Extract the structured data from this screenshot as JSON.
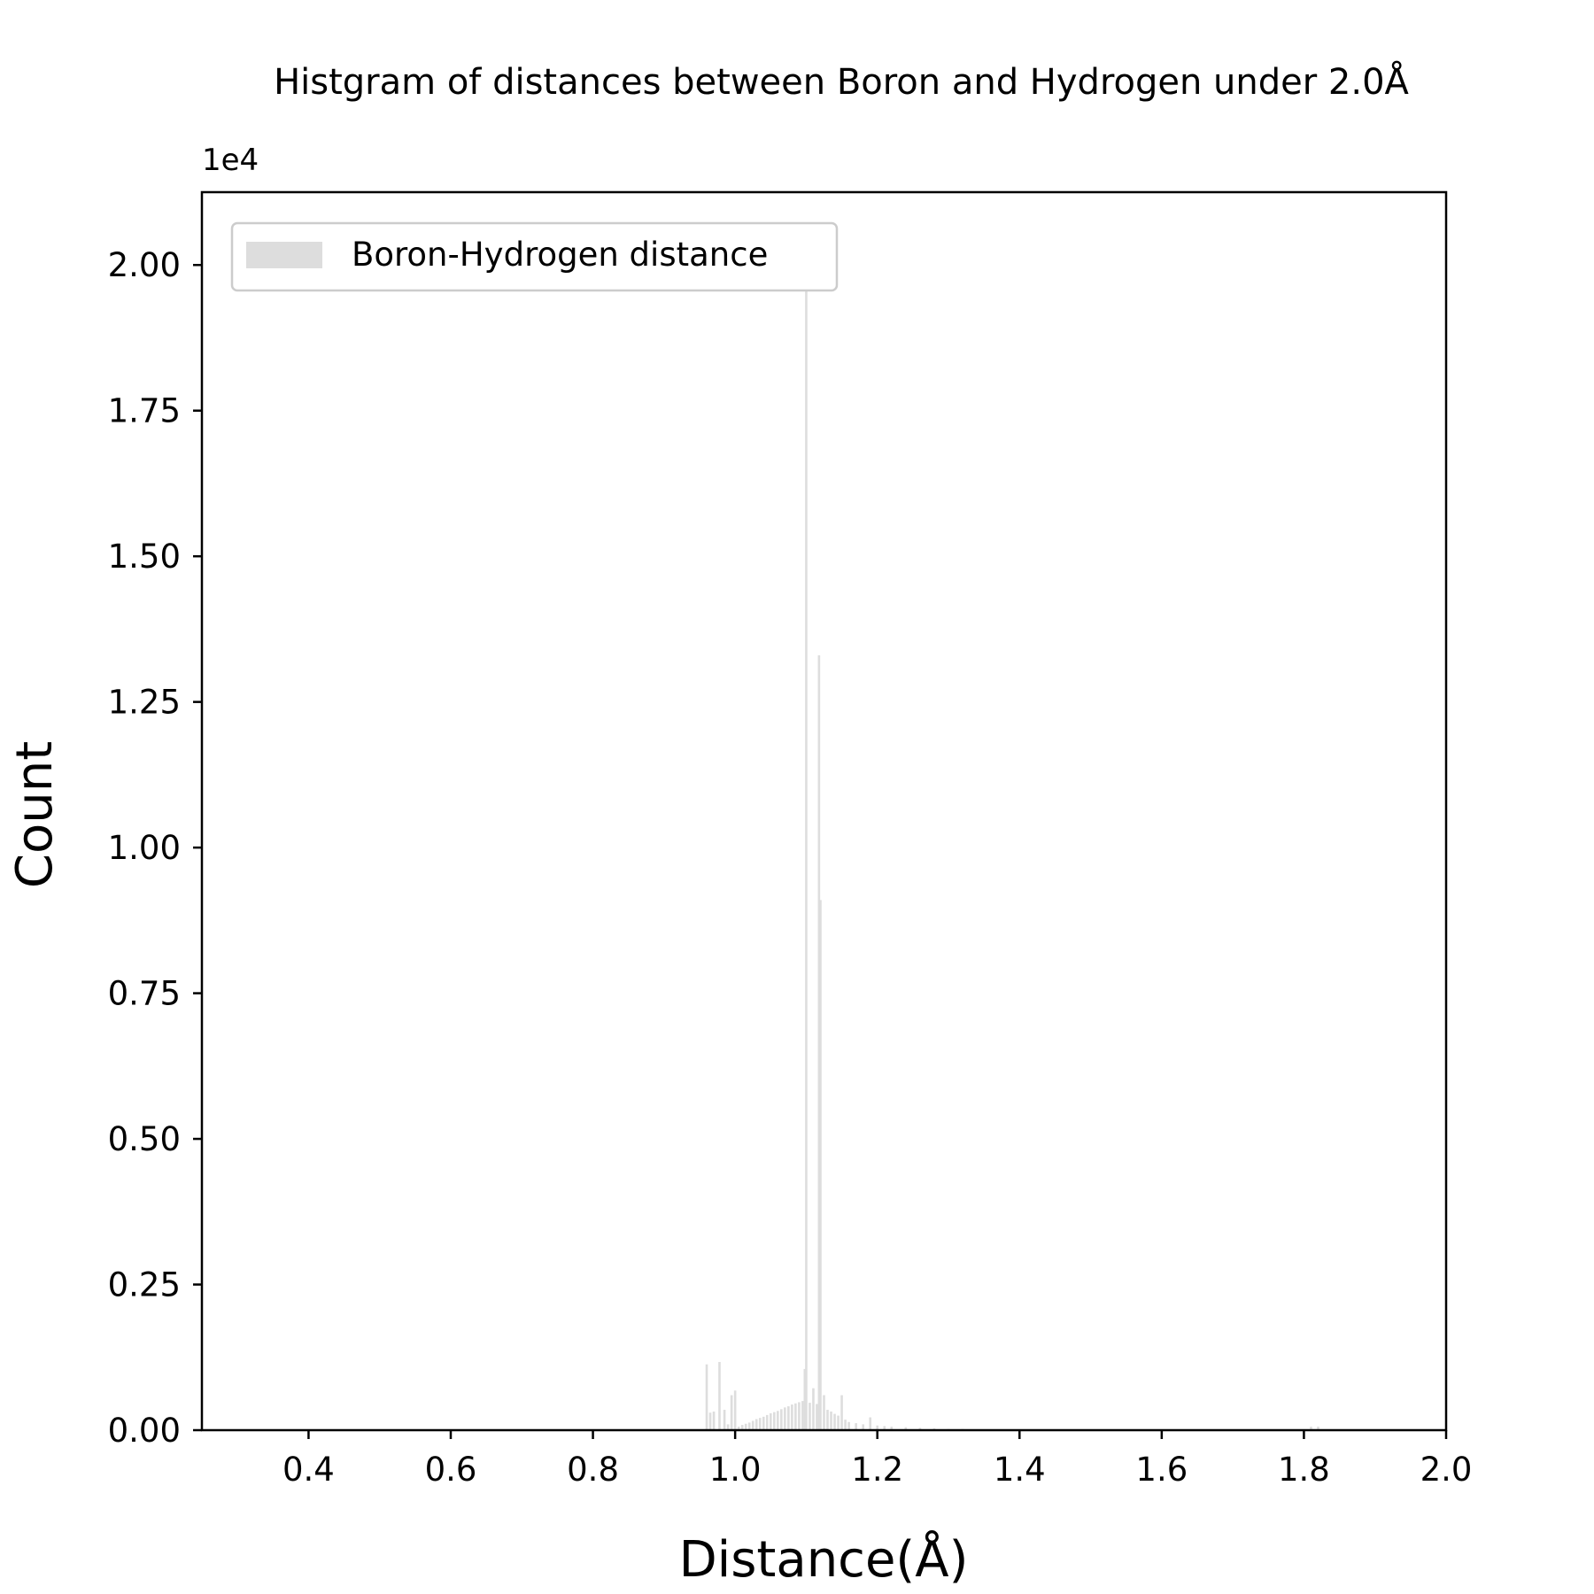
{
  "chart_data": {
    "type": "bar",
    "title": "Histgram of distances between Boron and Hydrogen under 2.0Å",
    "xlabel": "Distance(Å)",
    "ylabel": "Count",
    "y_scale_label": "1e4",
    "xlim": [
      0.25,
      2.0
    ],
    "ylim": [
      0,
      2.125
    ],
    "x_ticks": [
      "0.4",
      "0.6",
      "0.8",
      "1.0",
      "1.2",
      "1.4",
      "1.6",
      "1.8",
      "2.0"
    ],
    "y_ticks": [
      "0.00",
      "0.25",
      "0.50",
      "0.75",
      "1.00",
      "1.25",
      "1.50",
      "1.75",
      "2.00"
    ],
    "grid": false,
    "legend": {
      "position": "top-left",
      "entries": [
        "Boron-Hydrogen distance"
      ]
    },
    "colors": {
      "bars": "#dddddd",
      "axes": "#000000",
      "legend_border": "#cccccc"
    },
    "series": [
      {
        "name": "Boron-Hydrogen distance",
        "x": [
          0.96,
          0.965,
          0.97,
          0.978,
          0.985,
          0.99,
          0.995,
          1.0,
          1.005,
          1.01,
          1.015,
          1.02,
          1.025,
          1.03,
          1.035,
          1.04,
          1.045,
          1.05,
          1.055,
          1.06,
          1.065,
          1.07,
          1.075,
          1.08,
          1.085,
          1.09,
          1.095,
          1.098,
          1.1,
          1.105,
          1.11,
          1.115,
          1.118,
          1.12,
          1.125,
          1.13,
          1.135,
          1.14,
          1.145,
          1.15,
          1.155,
          1.16,
          1.17,
          1.18,
          1.19,
          1.2,
          1.21,
          1.22,
          1.24,
          1.26,
          1.28,
          1.3,
          1.32,
          1.81,
          1.82
        ],
        "values": [
          0.113,
          0.03,
          0.032,
          0.117,
          0.035,
          0.01,
          0.06,
          0.068,
          0.006,
          0.009,
          0.011,
          0.013,
          0.016,
          0.019,
          0.021,
          0.023,
          0.026,
          0.029,
          0.031,
          0.033,
          0.036,
          0.039,
          0.041,
          0.044,
          0.046,
          0.048,
          0.05,
          0.105,
          1.99,
          0.047,
          0.072,
          0.045,
          1.33,
          0.91,
          0.06,
          0.035,
          0.032,
          0.028,
          0.025,
          0.06,
          0.018,
          0.014,
          0.012,
          0.01,
          0.022,
          0.008,
          0.007,
          0.006,
          0.005,
          0.004,
          0.003,
          0.002,
          0.002,
          0.006,
          0.006
        ]
      }
    ]
  }
}
